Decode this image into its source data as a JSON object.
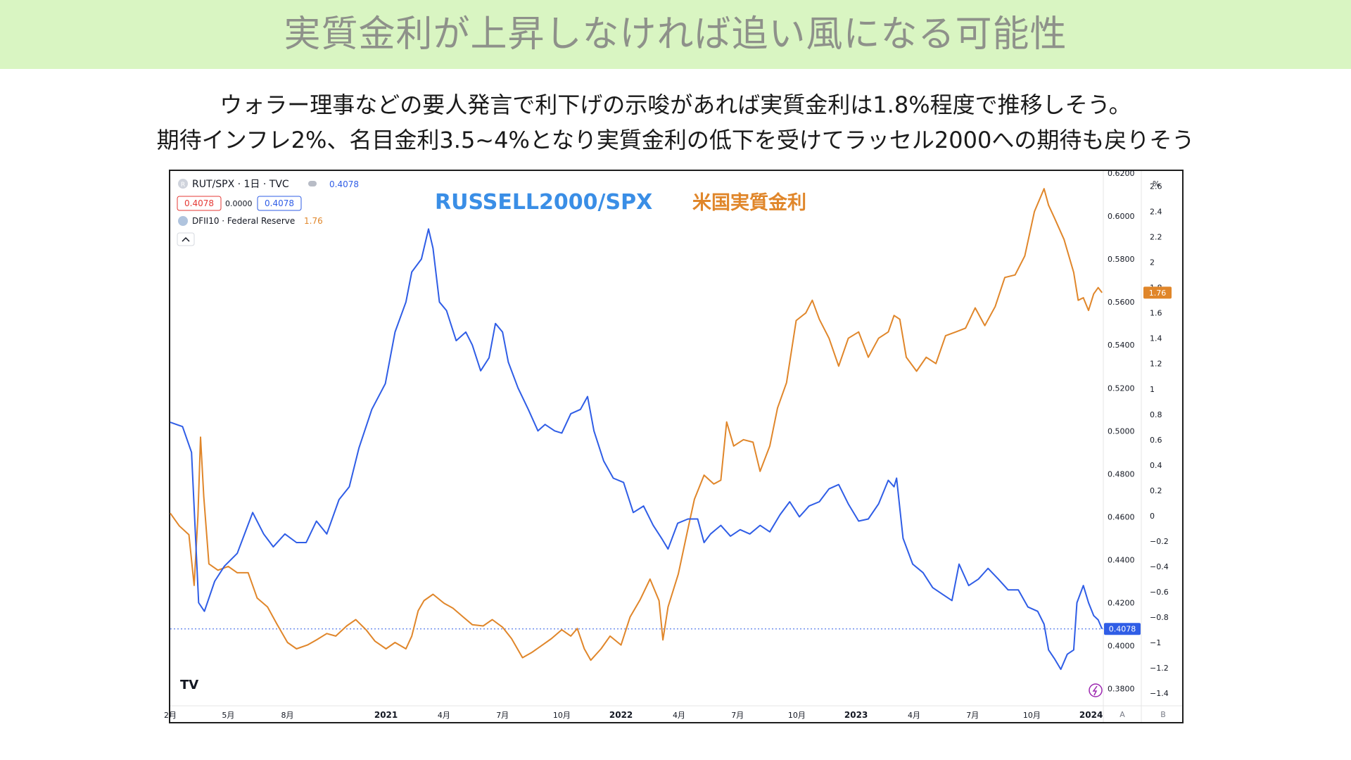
{
  "banner": {
    "title": "実質金利が上昇しなければ追い風になる可能性"
  },
  "subtitle": {
    "line1": "ウォラー理事などの要人発言で利下げの示唆があれば実質金利は1.8%程度で推移しそう。",
    "line2": "期待インフレ2%、名目金利3.5~4%となり実質金利の低下を受けてラッセル2000への期待も戻りそう"
  },
  "colors": {
    "banner_bg": "#d9f5c2",
    "rut_spx": "#2f5de6",
    "real_rate": "#e0862a",
    "overlay_rut": "#3a8ee6"
  },
  "chart_header": {
    "symbol": "RUT/SPX · 1日 · TVC",
    "symbol_icon": "R",
    "price": "0.4078",
    "box_left": "0.4078",
    "change": "0.0000",
    "box_right": "0.4078",
    "series2": "DFII10 · Federal Reserve",
    "series2_value": "1.76",
    "collapse_icon": "chevron-up-icon"
  },
  "overlay_labels": {
    "rut": "RUSSELL2000/SPX",
    "rate": "米国実質金利"
  },
  "axis_extra": {
    "percent_unit": "%",
    "btn_a": "A",
    "btn_b": "B",
    "logo": "TV",
    "bolt_icon": "lightning-icon"
  },
  "chart_data": {
    "type": "line",
    "x_tick_labels": [
      "2月",
      "5月",
      "8月",
      "2021",
      "4月",
      "7月",
      "10月",
      "2022",
      "4月",
      "7月",
      "10月",
      "2023",
      "4月",
      "7月",
      "10月",
      "2024"
    ],
    "x_tick_dates": [
      "2020-02-01",
      "2020-05-01",
      "2020-08-01",
      "2021-01-01",
      "2021-04-01",
      "2021-07-01",
      "2021-10-01",
      "2022-01-01",
      "2022-04-01",
      "2022-07-01",
      "2022-10-01",
      "2023-01-01",
      "2023-04-01",
      "2023-07-01",
      "2023-10-01",
      "2024-01-01"
    ],
    "x_range": [
      "2020-02-01",
      "2024-01-20"
    ],
    "y_left": {
      "series": "RUT/SPX",
      "ticks": [
        "0.6200",
        "0.6000",
        "0.5800",
        "0.5600",
        "0.5400",
        "0.5200",
        "0.5000",
        "0.4800",
        "0.4600",
        "0.4400",
        "0.4200",
        "0.4000",
        "0.3800"
      ],
      "range": [
        0.372,
        0.621
      ]
    },
    "y_right": {
      "series": "DFII10",
      "unit": "%",
      "ticks": [
        "2.6",
        "2.4",
        "2.2",
        "2",
        "1.8",
        "1.6",
        "1.4",
        "1.2",
        "1",
        "0.8",
        "0.6",
        "0.4",
        "0.2",
        "0",
        "−0.2",
        "−0.4",
        "−0.6",
        "−0.8",
        "−1",
        "−1.2",
        "−1.4"
      ],
      "range": [
        -1.5,
        2.72
      ]
    },
    "grid": false,
    "series": [
      {
        "name": "RUT/SPX",
        "axis": "left",
        "current": "0.4078",
        "points": [
          [
            "2020-02-01",
            0.504
          ],
          [
            "2020-02-20",
            0.502
          ],
          [
            "2020-03-05",
            0.49
          ],
          [
            "2020-03-16",
            0.42
          ],
          [
            "2020-03-25",
            0.416
          ],
          [
            "2020-04-10",
            0.43
          ],
          [
            "2020-04-25",
            0.437
          ],
          [
            "2020-05-15",
            0.443
          ],
          [
            "2020-06-08",
            0.462
          ],
          [
            "2020-06-25",
            0.452
          ],
          [
            "2020-07-10",
            0.446
          ],
          [
            "2020-07-28",
            0.452
          ],
          [
            "2020-08-15",
            0.448
          ],
          [
            "2020-08-30",
            0.448
          ],
          [
            "2020-09-15",
            0.458
          ],
          [
            "2020-10-01",
            0.452
          ],
          [
            "2020-10-20",
            0.468
          ],
          [
            "2020-11-05",
            0.474
          ],
          [
            "2020-11-20",
            0.492
          ],
          [
            "2020-12-10",
            0.51
          ],
          [
            "2020-12-31",
            0.522
          ],
          [
            "2021-01-15",
            0.546
          ],
          [
            "2021-02-01",
            0.56
          ],
          [
            "2021-02-10",
            0.574
          ],
          [
            "2021-02-25",
            0.58
          ],
          [
            "2021-03-08",
            0.594
          ],
          [
            "2021-03-15",
            0.585
          ],
          [
            "2021-03-25",
            0.56
          ],
          [
            "2021-04-05",
            0.556
          ],
          [
            "2021-04-20",
            0.542
          ],
          [
            "2021-05-05",
            0.546
          ],
          [
            "2021-05-15",
            0.54
          ],
          [
            "2021-05-28",
            0.528
          ],
          [
            "2021-06-10",
            0.534
          ],
          [
            "2021-06-20",
            0.55
          ],
          [
            "2021-07-01",
            0.546
          ],
          [
            "2021-07-10",
            0.532
          ],
          [
            "2021-07-25",
            0.52
          ],
          [
            "2021-08-10",
            0.51
          ],
          [
            "2021-08-25",
            0.5
          ],
          [
            "2021-09-05",
            0.503
          ],
          [
            "2021-09-20",
            0.5
          ],
          [
            "2021-10-01",
            0.499
          ],
          [
            "2021-10-15",
            0.508
          ],
          [
            "2021-10-30",
            0.51
          ],
          [
            "2021-11-10",
            0.516
          ],
          [
            "2021-11-20",
            0.5
          ],
          [
            "2021-12-05",
            0.486
          ],
          [
            "2021-12-20",
            0.478
          ],
          [
            "2022-01-05",
            0.476
          ],
          [
            "2022-01-20",
            0.462
          ],
          [
            "2022-02-05",
            0.465
          ],
          [
            "2022-02-20",
            0.456
          ],
          [
            "2022-03-05",
            0.45
          ],
          [
            "2022-03-15",
            0.445
          ],
          [
            "2022-03-30",
            0.457
          ],
          [
            "2022-04-15",
            0.459
          ],
          [
            "2022-04-30",
            0.459
          ],
          [
            "2022-05-10",
            0.448
          ],
          [
            "2022-05-20",
            0.452
          ],
          [
            "2022-06-05",
            0.456
          ],
          [
            "2022-06-20",
            0.451
          ],
          [
            "2022-07-05",
            0.454
          ],
          [
            "2022-07-20",
            0.452
          ],
          [
            "2022-08-05",
            0.456
          ],
          [
            "2022-08-20",
            0.453
          ],
          [
            "2022-09-05",
            0.461
          ],
          [
            "2022-09-20",
            0.467
          ],
          [
            "2022-10-05",
            0.46
          ],
          [
            "2022-10-20",
            0.465
          ],
          [
            "2022-11-05",
            0.467
          ],
          [
            "2022-11-20",
            0.473
          ],
          [
            "2022-12-05",
            0.475
          ],
          [
            "2022-12-20",
            0.466
          ],
          [
            "2023-01-05",
            0.458
          ],
          [
            "2023-01-20",
            0.459
          ],
          [
            "2023-02-05",
            0.466
          ],
          [
            "2023-02-20",
            0.477
          ],
          [
            "2023-03-01",
            0.474
          ],
          [
            "2023-03-05",
            0.478
          ],
          [
            "2023-03-15",
            0.45
          ],
          [
            "2023-03-30",
            0.438
          ],
          [
            "2023-04-15",
            0.434
          ],
          [
            "2023-04-30",
            0.427
          ],
          [
            "2023-05-15",
            0.424
          ],
          [
            "2023-05-30",
            0.421
          ],
          [
            "2023-06-10",
            0.438
          ],
          [
            "2023-06-25",
            0.428
          ],
          [
            "2023-07-10",
            0.431
          ],
          [
            "2023-07-25",
            0.436
          ],
          [
            "2023-08-10",
            0.431
          ],
          [
            "2023-08-25",
            0.426
          ],
          [
            "2023-09-10",
            0.426
          ],
          [
            "2023-09-25",
            0.418
          ],
          [
            "2023-10-10",
            0.416
          ],
          [
            "2023-10-20",
            0.41
          ],
          [
            "2023-10-27",
            0.398
          ],
          [
            "2023-11-05",
            0.394
          ],
          [
            "2023-11-15",
            0.389
          ],
          [
            "2023-11-25",
            0.396
          ],
          [
            "2023-12-05",
            0.398
          ],
          [
            "2023-12-10",
            0.42
          ],
          [
            "2023-12-20",
            0.428
          ],
          [
            "2023-12-28",
            0.42
          ],
          [
            "2024-01-05",
            0.414
          ],
          [
            "2024-01-12",
            0.412
          ],
          [
            "2024-01-18",
            0.4078
          ]
        ]
      },
      {
        "name": "DFII10",
        "axis": "right",
        "current": "1.76",
        "points": [
          [
            "2020-02-01",
            0.02
          ],
          [
            "2020-02-15",
            -0.08
          ],
          [
            "2020-03-01",
            -0.15
          ],
          [
            "2020-03-09",
            -0.55
          ],
          [
            "2020-03-15",
            0.0
          ],
          [
            "2020-03-19",
            0.62
          ],
          [
            "2020-03-24",
            0.15
          ],
          [
            "2020-04-01",
            -0.38
          ],
          [
            "2020-04-15",
            -0.43
          ],
          [
            "2020-05-01",
            -0.4
          ],
          [
            "2020-05-15",
            -0.45
          ],
          [
            "2020-06-01",
            -0.45
          ],
          [
            "2020-06-15",
            -0.65
          ],
          [
            "2020-07-01",
            -0.72
          ],
          [
            "2020-07-15",
            -0.85
          ],
          [
            "2020-08-01",
            -1.0
          ],
          [
            "2020-08-15",
            -1.05
          ],
          [
            "2020-09-01",
            -1.02
          ],
          [
            "2020-09-15",
            -0.98
          ],
          [
            "2020-10-01",
            -0.93
          ],
          [
            "2020-10-15",
            -0.95
          ],
          [
            "2020-11-01",
            -0.87
          ],
          [
            "2020-11-15",
            -0.82
          ],
          [
            "2020-12-01",
            -0.9
          ],
          [
            "2020-12-15",
            -0.99
          ],
          [
            "2021-01-01",
            -1.05
          ],
          [
            "2021-01-15",
            -1.0
          ],
          [
            "2021-02-01",
            -1.05
          ],
          [
            "2021-02-10",
            -0.95
          ],
          [
            "2021-02-20",
            -0.75
          ],
          [
            "2021-03-01",
            -0.67
          ],
          [
            "2021-03-15",
            -0.62
          ],
          [
            "2021-04-01",
            -0.69
          ],
          [
            "2021-04-15",
            -0.73
          ],
          [
            "2021-05-01",
            -0.8
          ],
          [
            "2021-05-15",
            -0.86
          ],
          [
            "2021-06-01",
            -0.87
          ],
          [
            "2021-06-15",
            -0.82
          ],
          [
            "2021-07-01",
            -0.88
          ],
          [
            "2021-07-15",
            -0.97
          ],
          [
            "2021-08-01",
            -1.12
          ],
          [
            "2021-08-15",
            -1.08
          ],
          [
            "2021-09-01",
            -1.02
          ],
          [
            "2021-09-15",
            -0.97
          ],
          [
            "2021-10-01",
            -0.9
          ],
          [
            "2021-10-15",
            -0.95
          ],
          [
            "2021-10-25",
            -0.89
          ],
          [
            "2021-11-05",
            -1.05
          ],
          [
            "2021-11-15",
            -1.14
          ],
          [
            "2021-12-01",
            -1.05
          ],
          [
            "2021-12-15",
            -0.95
          ],
          [
            "2022-01-01",
            -1.02
          ],
          [
            "2022-01-15",
            -0.8
          ],
          [
            "2022-01-31",
            -0.66
          ],
          [
            "2022-02-15",
            -0.5
          ],
          [
            "2022-03-01",
            -0.67
          ],
          [
            "2022-03-07",
            -0.98
          ],
          [
            "2022-03-15",
            -0.72
          ],
          [
            "2022-03-31",
            -0.46
          ],
          [
            "2022-04-15",
            -0.1
          ],
          [
            "2022-04-25",
            0.13
          ],
          [
            "2022-05-10",
            0.32
          ],
          [
            "2022-05-25",
            0.25
          ],
          [
            "2022-06-05",
            0.28
          ],
          [
            "2022-06-14",
            0.74
          ],
          [
            "2022-06-25",
            0.55
          ],
          [
            "2022-07-10",
            0.6
          ],
          [
            "2022-07-25",
            0.58
          ],
          [
            "2022-08-05",
            0.35
          ],
          [
            "2022-08-20",
            0.55
          ],
          [
            "2022-09-01",
            0.85
          ],
          [
            "2022-09-15",
            1.05
          ],
          [
            "2022-09-30",
            1.54
          ],
          [
            "2022-10-15",
            1.6
          ],
          [
            "2022-10-25",
            1.7
          ],
          [
            "2022-11-05",
            1.55
          ],
          [
            "2022-11-20",
            1.4
          ],
          [
            "2022-12-05",
            1.18
          ],
          [
            "2022-12-20",
            1.4
          ],
          [
            "2023-01-05",
            1.45
          ],
          [
            "2023-01-20",
            1.25
          ],
          [
            "2023-02-05",
            1.4
          ],
          [
            "2023-02-20",
            1.45
          ],
          [
            "2023-03-01",
            1.58
          ],
          [
            "2023-03-10",
            1.55
          ],
          [
            "2023-03-20",
            1.25
          ],
          [
            "2023-04-05",
            1.14
          ],
          [
            "2023-04-20",
            1.25
          ],
          [
            "2023-05-05",
            1.2
          ],
          [
            "2023-05-20",
            1.42
          ],
          [
            "2023-06-05",
            1.45
          ],
          [
            "2023-06-20",
            1.48
          ],
          [
            "2023-07-05",
            1.64
          ],
          [
            "2023-07-20",
            1.5
          ],
          [
            "2023-08-05",
            1.65
          ],
          [
            "2023-08-20",
            1.88
          ],
          [
            "2023-09-05",
            1.9
          ],
          [
            "2023-09-20",
            2.05
          ],
          [
            "2023-10-05",
            2.4
          ],
          [
            "2023-10-20",
            2.58
          ],
          [
            "2023-10-27",
            2.45
          ],
          [
            "2023-11-05",
            2.35
          ],
          [
            "2023-11-20",
            2.18
          ],
          [
            "2023-12-05",
            1.92
          ],
          [
            "2023-12-12",
            1.7
          ],
          [
            "2023-12-20",
            1.72
          ],
          [
            "2023-12-28",
            1.62
          ],
          [
            "2024-01-05",
            1.75
          ],
          [
            "2024-01-12",
            1.8
          ],
          [
            "2024-01-18",
            1.76
          ]
        ]
      }
    ]
  }
}
